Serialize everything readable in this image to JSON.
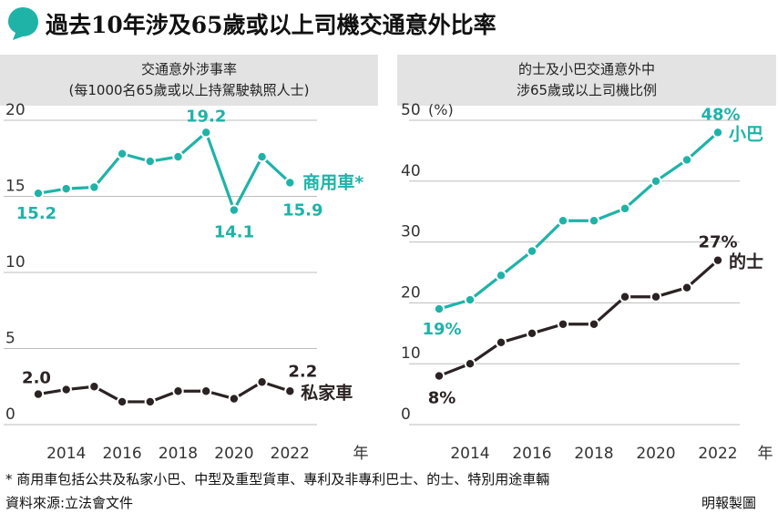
{
  "header": {
    "title": "過去10年涉及65歲或以上司機交通意外比率"
  },
  "chart_data": [
    {
      "type": "line",
      "title": "交通意外涉事率",
      "subtitle": "(每1000名65歲或以上持駕駛執照人士)",
      "x": [
        2013,
        2014,
        2015,
        2016,
        2017,
        2018,
        2019,
        2020,
        2021,
        2022
      ],
      "xticks": [
        2014,
        2016,
        2018,
        2020,
        2022
      ],
      "xlabel": "年",
      "ylim": [
        0,
        20
      ],
      "yticks": [
        0,
        5,
        10,
        15,
        20
      ],
      "grid": true,
      "series": [
        {
          "name": "商用車*",
          "color": "#1fb3a8",
          "values": [
            15.2,
            15.5,
            15.6,
            17.8,
            17.3,
            17.6,
            19.2,
            14.1,
            17.6,
            15.9
          ],
          "labels": {
            "start": "15.2",
            "peak": "19.2",
            "low": "14.1",
            "end": "15.9"
          }
        },
        {
          "name": "私家車",
          "color": "#2a2223",
          "values": [
            2.0,
            2.3,
            2.5,
            1.5,
            1.5,
            2.2,
            2.2,
            1.7,
            2.8,
            2.2
          ],
          "labels": {
            "start": "2.0",
            "end": "2.2"
          }
        }
      ]
    },
    {
      "type": "line",
      "title": "的士及小巴交通意外中",
      "subtitle": "涉65歲或以上司機比例",
      "x": [
        2013,
        2014,
        2015,
        2016,
        2017,
        2018,
        2019,
        2020,
        2021,
        2022
      ],
      "xticks": [
        2014,
        2016,
        2018,
        2020,
        2022
      ],
      "xlabel": "年",
      "ylabel": "(%)",
      "ylim": [
        0,
        50
      ],
      "yticks": [
        0,
        10,
        20,
        30,
        40,
        50
      ],
      "grid": true,
      "series": [
        {
          "name": "小巴",
          "color": "#1fb3a8",
          "values": [
            19,
            20.5,
            24.5,
            28.5,
            33.5,
            33.5,
            35.5,
            40,
            43.5,
            48
          ],
          "labels": {
            "start": "19%",
            "end": "48%"
          }
        },
        {
          "name": "的士",
          "color": "#2a2223",
          "values": [
            8,
            10,
            13.5,
            15,
            16.5,
            16.5,
            21,
            21,
            22.5,
            27
          ],
          "labels": {
            "start": "8%",
            "end": "27%"
          }
        }
      ]
    }
  ],
  "footnote": "* 商用車包括公共及私家小巴、中型及重型貨車、專利及非專利巴士、的士、特別用途車輛",
  "source": "資料來源:立法會文件",
  "credit": "明報製圖"
}
